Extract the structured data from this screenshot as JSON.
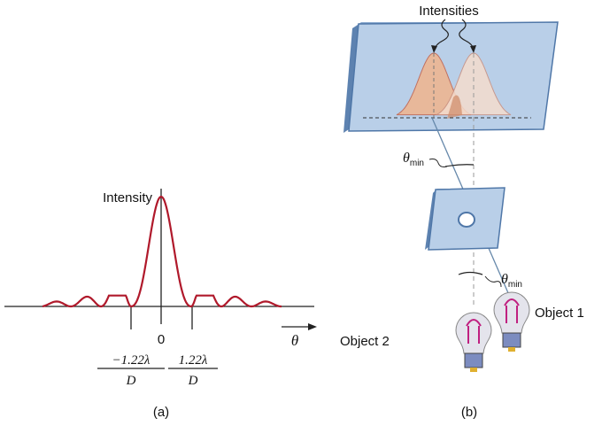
{
  "panel_a": {
    "y_label": "Intensity",
    "origin_label": "0",
    "x_label": "θ",
    "left_min": {
      "numerator": "−1.22λ",
      "denominator": "D"
    },
    "right_min": {
      "numerator": "1.22λ",
      "denominator": "D"
    },
    "caption": "(a)",
    "curve_color": "#b0192b"
  },
  "panel_b": {
    "screen_label": "Intensities",
    "angle_label_top": {
      "symbol": "θ",
      "sub": "min"
    },
    "angle_label_bottom": {
      "symbol": "θ",
      "sub": "min"
    },
    "object1_label": "Object 1",
    "object2_label": "Object 2",
    "caption": "(b)",
    "screen_color": "#b9cfe8",
    "peak_color": "#e8b89a"
  }
}
